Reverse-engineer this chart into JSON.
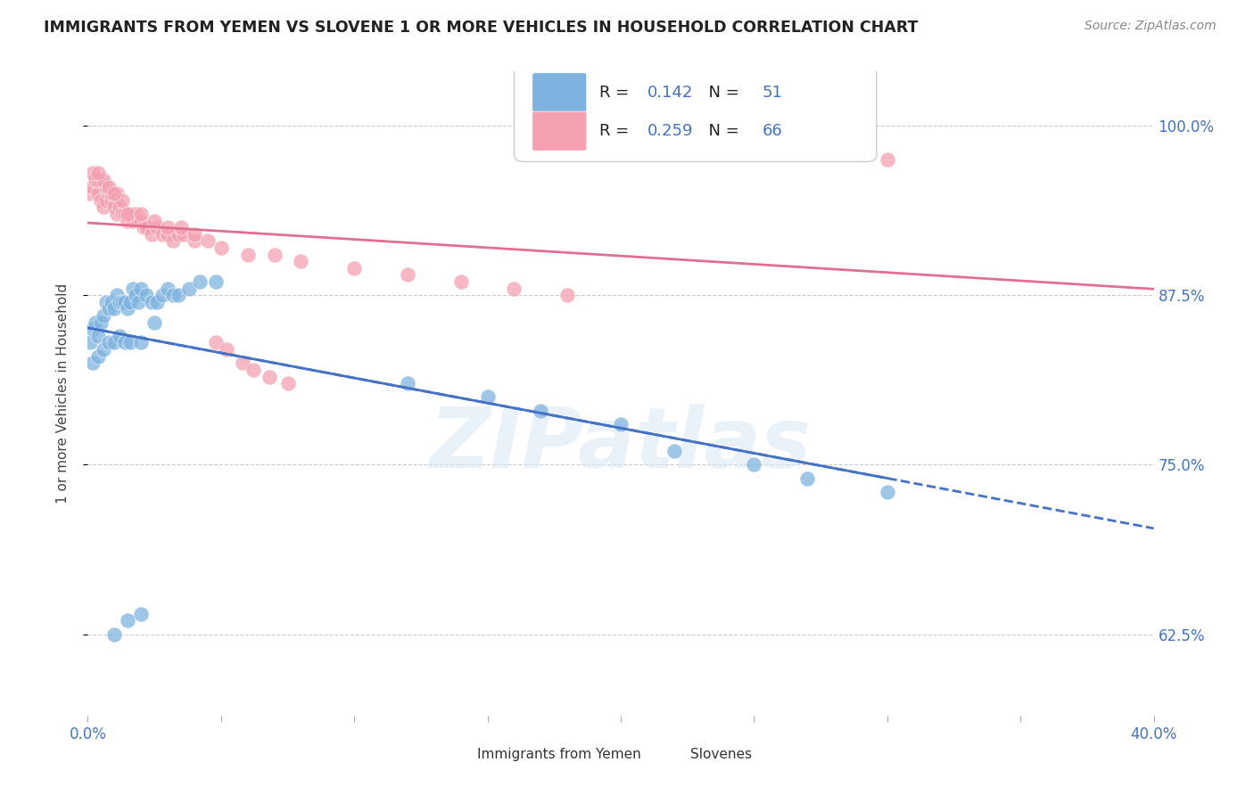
{
  "title": "IMMIGRANTS FROM YEMEN VS SLOVENE 1 OR MORE VEHICLES IN HOUSEHOLD CORRELATION CHART",
  "source": "Source: ZipAtlas.com",
  "ylabel": "1 or more Vehicles in Household",
  "xlim": [
    0.0,
    0.4
  ],
  "ylim": [
    0.565,
    1.04
  ],
  "xtick_positions": [
    0.0,
    0.05,
    0.1,
    0.15,
    0.2,
    0.25,
    0.3,
    0.35,
    0.4
  ],
  "xticklabels": [
    "0.0%",
    "",
    "",
    "",
    "",
    "",
    "",
    "",
    "40.0%"
  ],
  "ytick_positions": [
    0.625,
    0.75,
    0.875,
    1.0
  ],
  "yticklabels": [
    "62.5%",
    "75.0%",
    "87.5%",
    "100.0%"
  ],
  "legend_R_blue": "0.142",
  "legend_N_blue": "51",
  "legend_R_pink": "0.259",
  "legend_N_pink": "66",
  "color_blue": "#7EB3E0",
  "color_pink": "#F4A0B0",
  "color_blue_line": "#4472C4",
  "color_pink_line": "#E07090",
  "color_blue_text": "#4472C4",
  "watermark_text": "ZIPatlas",
  "blue_x": [
    0.001,
    0.002,
    0.003,
    0.004,
    0.005,
    0.006,
    0.007,
    0.008,
    0.009,
    0.01,
    0.011,
    0.012,
    0.013,
    0.014,
    0.015,
    0.016,
    0.017,
    0.018,
    0.019,
    0.02,
    0.022,
    0.024,
    0.026,
    0.028,
    0.03,
    0.032,
    0.034,
    0.038,
    0.042,
    0.048,
    0.002,
    0.004,
    0.006,
    0.008,
    0.01,
    0.012,
    0.014,
    0.016,
    0.02,
    0.025,
    0.12,
    0.15,
    0.17,
    0.2,
    0.22,
    0.25,
    0.27,
    0.3,
    0.01,
    0.015,
    0.02
  ],
  "blue_y": [
    0.84,
    0.85,
    0.855,
    0.845,
    0.855,
    0.86,
    0.87,
    0.865,
    0.87,
    0.865,
    0.875,
    0.87,
    0.87,
    0.87,
    0.865,
    0.87,
    0.88,
    0.875,
    0.87,
    0.88,
    0.875,
    0.87,
    0.87,
    0.875,
    0.88,
    0.875,
    0.875,
    0.88,
    0.885,
    0.885,
    0.825,
    0.83,
    0.835,
    0.84,
    0.84,
    0.845,
    0.84,
    0.84,
    0.84,
    0.855,
    0.81,
    0.8,
    0.79,
    0.78,
    0.76,
    0.75,
    0.74,
    0.73,
    0.625,
    0.635,
    0.64
  ],
  "pink_x": [
    0.001,
    0.002,
    0.003,
    0.004,
    0.005,
    0.006,
    0.007,
    0.008,
    0.009,
    0.01,
    0.011,
    0.012,
    0.013,
    0.014,
    0.015,
    0.016,
    0.017,
    0.018,
    0.019,
    0.02,
    0.021,
    0.022,
    0.024,
    0.026,
    0.028,
    0.03,
    0.032,
    0.034,
    0.036,
    0.04,
    0.003,
    0.005,
    0.007,
    0.009,
    0.011,
    0.013,
    0.004,
    0.006,
    0.008,
    0.01,
    0.05,
    0.06,
    0.07,
    0.08,
    0.1,
    0.12,
    0.14,
    0.16,
    0.18,
    0.002,
    0.004,
    0.29,
    0.3,
    0.015,
    0.02,
    0.025,
    0.03,
    0.035,
    0.04,
    0.045,
    0.048,
    0.052,
    0.058,
    0.062,
    0.068,
    0.075
  ],
  "pink_y": [
    0.95,
    0.955,
    0.96,
    0.95,
    0.945,
    0.94,
    0.945,
    0.95,
    0.945,
    0.94,
    0.935,
    0.94,
    0.935,
    0.935,
    0.93,
    0.935,
    0.93,
    0.935,
    0.93,
    0.93,
    0.925,
    0.925,
    0.92,
    0.925,
    0.92,
    0.92,
    0.915,
    0.92,
    0.92,
    0.915,
    0.96,
    0.96,
    0.955,
    0.95,
    0.95,
    0.945,
    0.96,
    0.96,
    0.955,
    0.95,
    0.91,
    0.905,
    0.905,
    0.9,
    0.895,
    0.89,
    0.885,
    0.88,
    0.875,
    0.965,
    0.965,
    1.0,
    0.975,
    0.935,
    0.935,
    0.93,
    0.925,
    0.925,
    0.92,
    0.915,
    0.84,
    0.835,
    0.825,
    0.82,
    0.815,
    0.81
  ]
}
